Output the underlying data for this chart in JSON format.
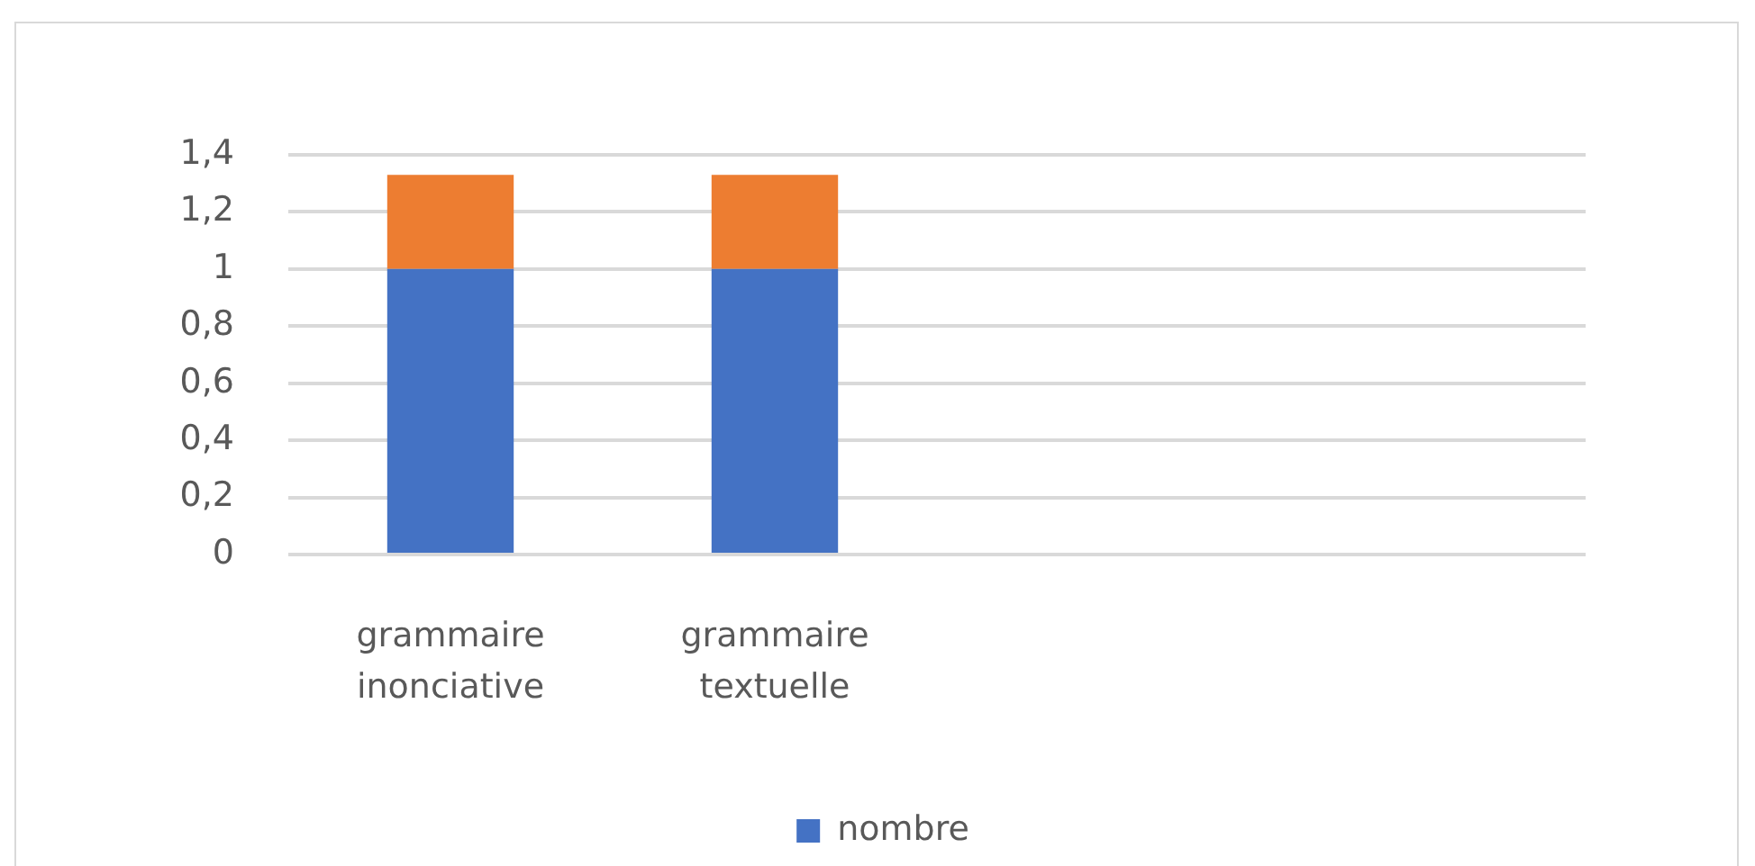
{
  "chart_data": {
    "type": "bar",
    "categories": [
      "grammaire inonciative",
      "grammaire textuelle",
      null,
      null
    ],
    "series": [
      {
        "name": "nombre",
        "color": "#4472c4",
        "values": [
          1,
          1,
          null,
          null
        ]
      },
      {
        "color": "#ed7d31",
        "values": [
          0.33,
          0.33,
          null,
          null
        ]
      }
    ],
    "stacked": true,
    "ylim": [
      0,
      1.4
    ],
    "yticks": [
      0,
      {
        "value": 0.2,
        "label": "0,2"
      },
      {
        "value": 0.4,
        "label": "0,4"
      },
      {
        "value": 0.6,
        "label": "0,6"
      },
      {
        "value": 0.8,
        "label": "0,8"
      },
      1,
      {
        "value": 1.2,
        "label": "1,2"
      },
      {
        "value": 1.4,
        "label": "1,4"
      }
    ],
    "grid": "y",
    "legend": "bottom"
  }
}
